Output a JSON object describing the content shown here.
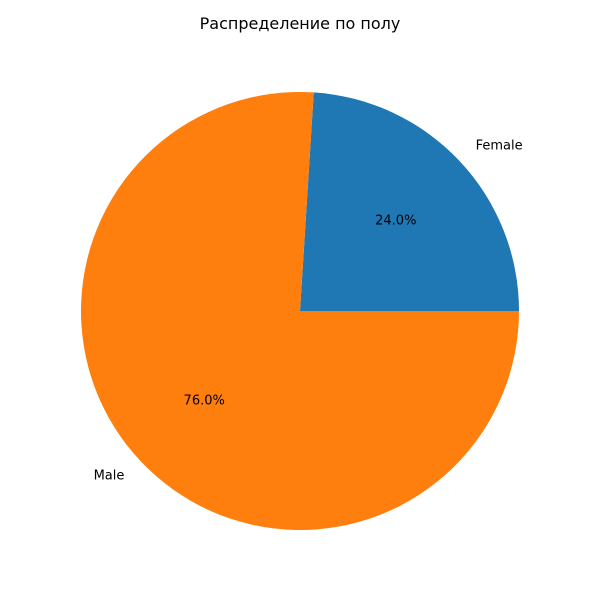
{
  "chart_data": {
    "type": "pie",
    "title": "Распределение по полу",
    "labels": [
      "Female",
      "Male"
    ],
    "values": [
      24.0,
      76.0
    ],
    "percent_labels": [
      "24.0%",
      "76.0%"
    ],
    "colors": [
      "#1f77b4",
      "#ff7f0e"
    ],
    "start_angle_deg": 0,
    "direction": "counterclockwise"
  }
}
